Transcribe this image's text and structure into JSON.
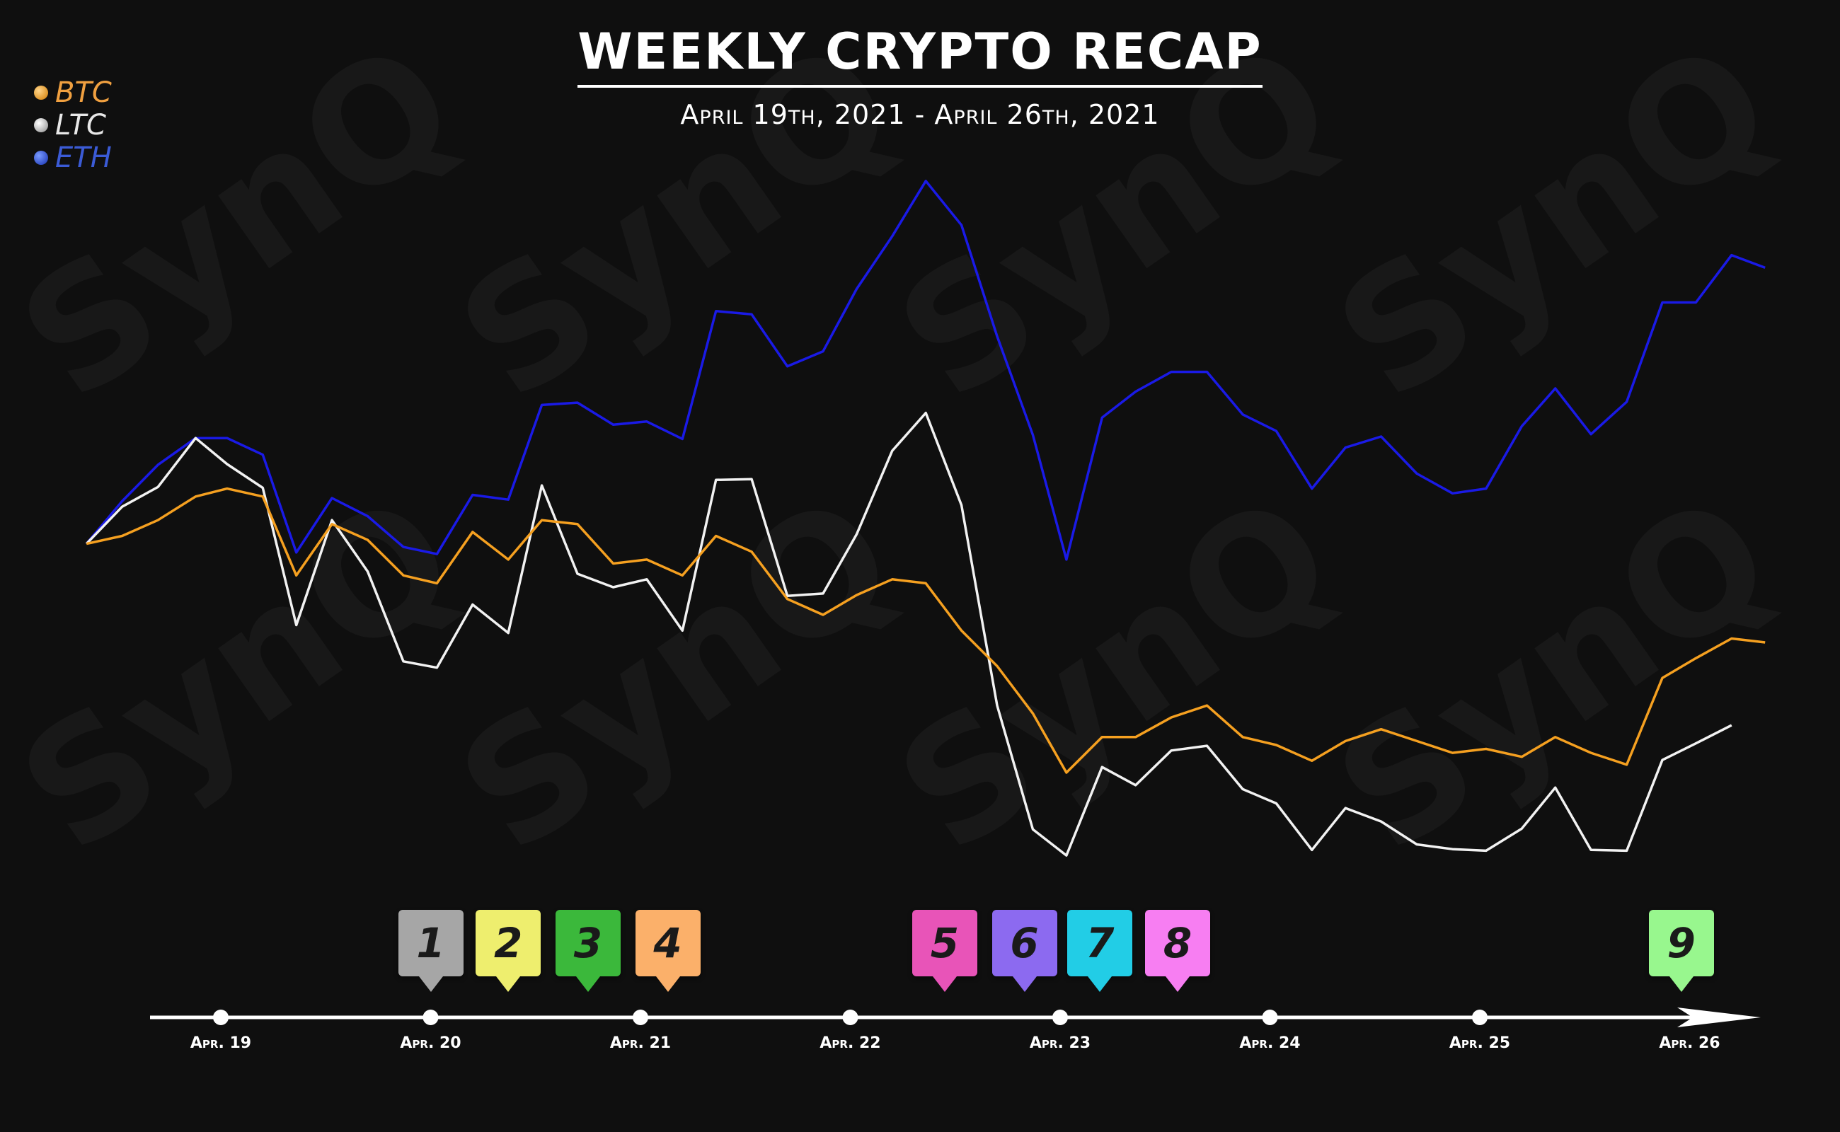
{
  "title": "WEEKLY CRYPTO RECAP",
  "subtitle": "April 19th, 2021 - April 26th, 2021",
  "watermark": "SynQ",
  "legend": [
    {
      "label": "BTC",
      "color": "#f5a020",
      "text_color": "#f0a040"
    },
    {
      "label": "LTC",
      "color": "#f2f2f2",
      "text_color": "#e8e8e8"
    },
    {
      "label": "ETH",
      "color": "#1a1ae6",
      "text_color": "#3b5bd6"
    }
  ],
  "chart_data": {
    "type": "line",
    "title": "WEEKLY CRYPTO RECAP",
    "subtitle": "April 19th, 2021 - April 26th, 2021",
    "xlabel": "",
    "ylabel": "",
    "grid": false,
    "legend_position": "top-left",
    "x_ticks": [
      {
        "label": "Apr. 19",
        "x": 0
      },
      {
        "label": "Apr. 20",
        "x": 1
      },
      {
        "label": "Apr. 21",
        "x": 2
      },
      {
        "label": "Apr. 22",
        "x": 3
      },
      {
        "label": "Apr. 23",
        "x": 4
      },
      {
        "label": "Apr. 24",
        "x": 5
      },
      {
        "label": "Apr. 25",
        "x": 6
      },
      {
        "label": "Apr. 26",
        "x": 7
      }
    ],
    "ylim": [
      0,
      100
    ],
    "y_unit": "relative (no axis printed)",
    "series": [
      {
        "name": "ETH",
        "color": "#1a1ae6",
        "points": [
          [
            -0.64,
            49.0
          ],
          [
            -0.47,
            54.4
          ],
          [
            -0.3,
            59.0
          ],
          [
            -0.12,
            62.4
          ],
          [
            0.03,
            62.4
          ],
          [
            0.2,
            60.3
          ],
          [
            0.36,
            47.9
          ],
          [
            0.53,
            54.8
          ],
          [
            0.7,
            52.5
          ],
          [
            0.87,
            48.6
          ],
          [
            1.03,
            47.7
          ],
          [
            1.2,
            55.2
          ],
          [
            1.37,
            54.6
          ],
          [
            1.53,
            66.6
          ],
          [
            1.7,
            66.9
          ],
          [
            1.87,
            64.1
          ],
          [
            2.03,
            64.5
          ],
          [
            2.2,
            62.3
          ],
          [
            2.36,
            78.5
          ],
          [
            2.53,
            78.1
          ],
          [
            2.7,
            71.5
          ],
          [
            2.87,
            73.4
          ],
          [
            3.03,
            81.3
          ],
          [
            3.2,
            88.0
          ],
          [
            3.36,
            95.0
          ],
          [
            3.53,
            89.4
          ],
          [
            3.7,
            75.3
          ],
          [
            3.87,
            62.8
          ],
          [
            4.03,
            47.0
          ],
          [
            4.2,
            65.0
          ],
          [
            4.36,
            68.3
          ],
          [
            4.53,
            70.8
          ],
          [
            4.7,
            70.8
          ],
          [
            4.87,
            65.4
          ],
          [
            5.03,
            63.3
          ],
          [
            5.2,
            56.0
          ],
          [
            5.36,
            61.2
          ],
          [
            5.53,
            62.6
          ],
          [
            5.7,
            57.9
          ],
          [
            5.87,
            55.4
          ],
          [
            6.03,
            56.0
          ],
          [
            6.2,
            63.9
          ],
          [
            6.36,
            68.7
          ],
          [
            6.53,
            62.9
          ],
          [
            6.7,
            67.0
          ],
          [
            6.87,
            79.6
          ],
          [
            7.03,
            79.6
          ],
          [
            7.2,
            85.6
          ],
          [
            7.36,
            84.0
          ]
        ]
      },
      {
        "name": "LTC",
        "color": "#f2f2f2",
        "points": [
          [
            -0.64,
            49.0
          ],
          [
            -0.47,
            53.7
          ],
          [
            -0.3,
            56.2
          ],
          [
            -0.12,
            62.4
          ],
          [
            0.03,
            59.1
          ],
          [
            0.2,
            56.1
          ],
          [
            0.36,
            38.7
          ],
          [
            0.53,
            52.0
          ],
          [
            0.7,
            45.5
          ],
          [
            0.87,
            34.1
          ],
          [
            1.03,
            33.3
          ],
          [
            1.2,
            41.3
          ],
          [
            1.37,
            37.7
          ],
          [
            1.53,
            56.4
          ],
          [
            1.7,
            45.2
          ],
          [
            1.87,
            43.5
          ],
          [
            2.03,
            44.5
          ],
          [
            2.2,
            38.0
          ],
          [
            2.36,
            57.1
          ],
          [
            2.53,
            57.2
          ],
          [
            2.7,
            42.4
          ],
          [
            2.87,
            42.7
          ],
          [
            3.03,
            50.2
          ],
          [
            3.2,
            60.8
          ],
          [
            3.36,
            65.6
          ],
          [
            3.53,
            53.9
          ],
          [
            3.7,
            28.5
          ],
          [
            3.87,
            12.8
          ],
          [
            4.03,
            9.5
          ],
          [
            4.2,
            20.7
          ],
          [
            4.36,
            18.4
          ],
          [
            4.53,
            22.8
          ],
          [
            4.7,
            23.4
          ],
          [
            4.87,
            17.9
          ],
          [
            5.03,
            16.1
          ],
          [
            5.2,
            10.2
          ],
          [
            5.36,
            15.5
          ],
          [
            5.53,
            13.8
          ],
          [
            5.7,
            10.9
          ],
          [
            5.87,
            10.3
          ],
          [
            6.03,
            10.1
          ],
          [
            6.2,
            12.9
          ],
          [
            6.36,
            18.1
          ],
          [
            6.53,
            10.2
          ],
          [
            6.7,
            10.1
          ],
          [
            6.87,
            21.6
          ],
          [
            7.03,
            23.7
          ],
          [
            7.2,
            26.0
          ]
        ]
      },
      {
        "name": "BTC",
        "color": "#f5a020",
        "points": [
          [
            -0.64,
            49.0
          ],
          [
            -0.47,
            50.0
          ],
          [
            -0.3,
            52.0
          ],
          [
            -0.12,
            55.0
          ],
          [
            0.03,
            56.0
          ],
          [
            0.2,
            55.0
          ],
          [
            0.36,
            45.0
          ],
          [
            0.53,
            51.5
          ],
          [
            0.7,
            49.5
          ],
          [
            0.87,
            45.0
          ],
          [
            1.03,
            44.0
          ],
          [
            1.2,
            50.5
          ],
          [
            1.37,
            47.0
          ],
          [
            1.53,
            52.0
          ],
          [
            1.7,
            51.5
          ],
          [
            1.87,
            46.5
          ],
          [
            2.03,
            47.0
          ],
          [
            2.2,
            45.0
          ],
          [
            2.36,
            50.0
          ],
          [
            2.53,
            48.0
          ],
          [
            2.7,
            42.0
          ],
          [
            2.87,
            40.0
          ],
          [
            3.03,
            42.5
          ],
          [
            3.2,
            44.5
          ],
          [
            3.36,
            44.0
          ],
          [
            3.53,
            38.0
          ],
          [
            3.7,
            33.5
          ],
          [
            3.87,
            27.5
          ],
          [
            4.03,
            20.0
          ],
          [
            4.2,
            24.5
          ],
          [
            4.36,
            24.5
          ],
          [
            4.53,
            27.0
          ],
          [
            4.7,
            28.5
          ],
          [
            4.87,
            24.5
          ],
          [
            5.03,
            23.5
          ],
          [
            5.2,
            21.5
          ],
          [
            5.36,
            24.0
          ],
          [
            5.53,
            25.5
          ],
          [
            5.7,
            24.0
          ],
          [
            5.87,
            22.5
          ],
          [
            6.03,
            23.0
          ],
          [
            6.2,
            22.0
          ],
          [
            6.36,
            24.5
          ],
          [
            6.53,
            22.5
          ],
          [
            6.7,
            21.0
          ],
          [
            6.87,
            32.0
          ],
          [
            7.03,
            34.5
          ],
          [
            7.2,
            37.0
          ],
          [
            7.36,
            36.5
          ]
        ]
      }
    ],
    "event_markers": [
      {
        "label": "1",
        "x": 1.0,
        "color": "#a6a6a6"
      },
      {
        "label": "2",
        "x": 1.37,
        "color": "#eeee6e"
      },
      {
        "label": "3",
        "x": 1.75,
        "color": "#3bb83b"
      },
      {
        "label": "4",
        "x": 2.13,
        "color": "#fbb06a"
      },
      {
        "label": "5",
        "x": 3.45,
        "color": "#e854b8"
      },
      {
        "label": "6",
        "x": 3.83,
        "color": "#8c6af0"
      },
      {
        "label": "7",
        "x": 4.19,
        "color": "#22cde6"
      },
      {
        "label": "8",
        "x": 4.56,
        "color": "#f77ef2"
      },
      {
        "label": "9",
        "x": 6.96,
        "color": "#98f78e"
      }
    ]
  }
}
